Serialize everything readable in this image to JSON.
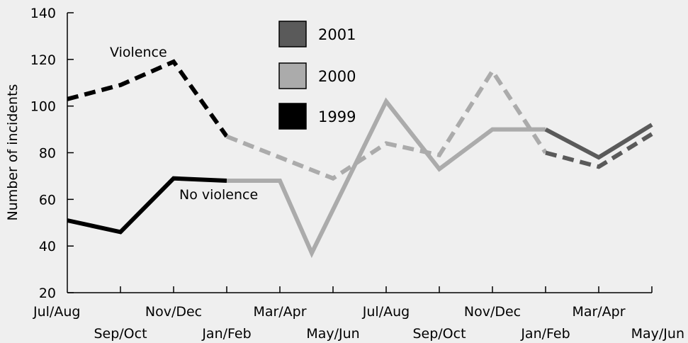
{
  "chart_data": {
    "type": "line",
    "title": "",
    "ylabel": "Number of incidents",
    "xlabel": "",
    "ylim": [
      20,
      140
    ],
    "yticks": [
      20,
      40,
      60,
      80,
      100,
      120,
      140
    ],
    "categories": [
      "Jul/Aug",
      "Sep/Oct",
      "Nov/Dec",
      "Jan/Feb",
      "Mar/Apr",
      "May/Jun",
      "Jul/Aug",
      "Sep/Oct",
      "Nov/Dec",
      "Jan/Feb",
      "Mar/Apr",
      "May/Jun"
    ],
    "grid": false,
    "legend_position": "top-center",
    "legend": [
      {
        "label": "2001",
        "color": "#5a5a5a"
      },
      {
        "label": "2000",
        "color": "#ababab"
      },
      {
        "label": "1999",
        "color": "#000000"
      }
    ],
    "annotations": {
      "violence": "Violence",
      "no_violence": "No violence"
    },
    "series": [
      {
        "name": "Violence",
        "style": "dashed",
        "values": [
          103,
          109,
          119,
          87,
          78,
          69,
          84,
          79,
          115,
          80,
          74,
          88
        ]
      },
      {
        "name": "No violence",
        "style": "solid",
        "values": [
          51,
          46,
          69,
          68,
          68,
          37,
          102,
          73,
          90,
          90,
          78,
          92
        ]
      }
    ],
    "year_segments": [
      {
        "year": "1999",
        "color": "#000000",
        "from": 0,
        "to": 3
      },
      {
        "year": "2000",
        "color": "#ababab",
        "from": 3,
        "to": 9
      },
      {
        "year": "2001",
        "color": "#5a5a5a",
        "from": 9,
        "to": 11
      }
    ],
    "points_detail": {
      "no_violence_extra": {
        "after_index": 4,
        "x_offset": 0.6,
        "value": 37
      }
    }
  }
}
